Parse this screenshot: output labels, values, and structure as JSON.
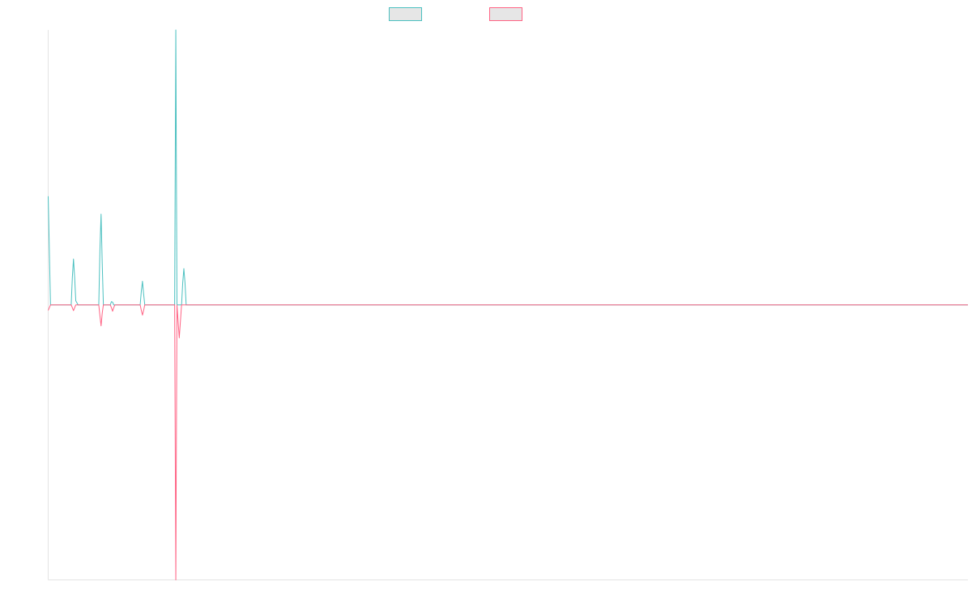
{
  "chart_data": {
    "type": "line",
    "title": "",
    "xlabel": "",
    "ylabel": "",
    "grid": false,
    "legend_position": "top-center",
    "x_count": 400,
    "ylim": [
      -100,
      100
    ],
    "series": [
      {
        "color": "#4bc0c0",
        "points": [
          [
            0,
            39.5
          ],
          [
            1,
            0
          ],
          [
            10,
            0
          ],
          [
            10.5,
            10
          ],
          [
            11,
            16.7
          ],
          [
            11.5,
            10
          ],
          [
            12,
            1.5
          ],
          [
            13,
            0
          ],
          [
            22,
            0
          ],
          [
            22.5,
            20
          ],
          [
            23,
            33
          ],
          [
            23.5,
            15
          ],
          [
            24,
            0
          ],
          [
            27,
            0
          ],
          [
            27.5,
            1.2
          ],
          [
            28,
            1
          ],
          [
            28.5,
            0
          ],
          [
            40,
            0
          ],
          [
            40.5,
            5
          ],
          [
            41,
            8.6
          ],
          [
            41.5,
            4
          ],
          [
            42,
            0
          ],
          [
            55,
            0
          ],
          [
            55.5,
            100
          ],
          [
            56,
            0
          ],
          [
            58,
            0
          ],
          [
            58.5,
            8
          ],
          [
            59,
            13.2
          ],
          [
            59.5,
            8
          ],
          [
            60,
            0
          ],
          [
            400,
            0
          ]
        ]
      },
      {
        "color": "#ff6384",
        "points": [
          [
            0,
            -2
          ],
          [
            1,
            0
          ],
          [
            10,
            0
          ],
          [
            10.5,
            -1
          ],
          [
            11,
            -2.1
          ],
          [
            11.5,
            -1
          ],
          [
            12,
            0
          ],
          [
            22,
            0
          ],
          [
            22.5,
            -4
          ],
          [
            23,
            -7.6
          ],
          [
            23.5,
            -3
          ],
          [
            24,
            0
          ],
          [
            27,
            0
          ],
          [
            27.5,
            -1
          ],
          [
            28,
            -2.3
          ],
          [
            28.5,
            -1
          ],
          [
            29,
            0
          ],
          [
            40,
            0
          ],
          [
            40.5,
            -2
          ],
          [
            41,
            -3.7
          ],
          [
            41.5,
            -2
          ],
          [
            42,
            0
          ],
          [
            55,
            0
          ],
          [
            55.5,
            -100
          ],
          [
            56,
            0
          ],
          [
            56.5,
            -6
          ],
          [
            57,
            -12
          ],
          [
            57.5,
            -6
          ],
          [
            58,
            0
          ],
          [
            400,
            0
          ]
        ]
      }
    ]
  }
}
